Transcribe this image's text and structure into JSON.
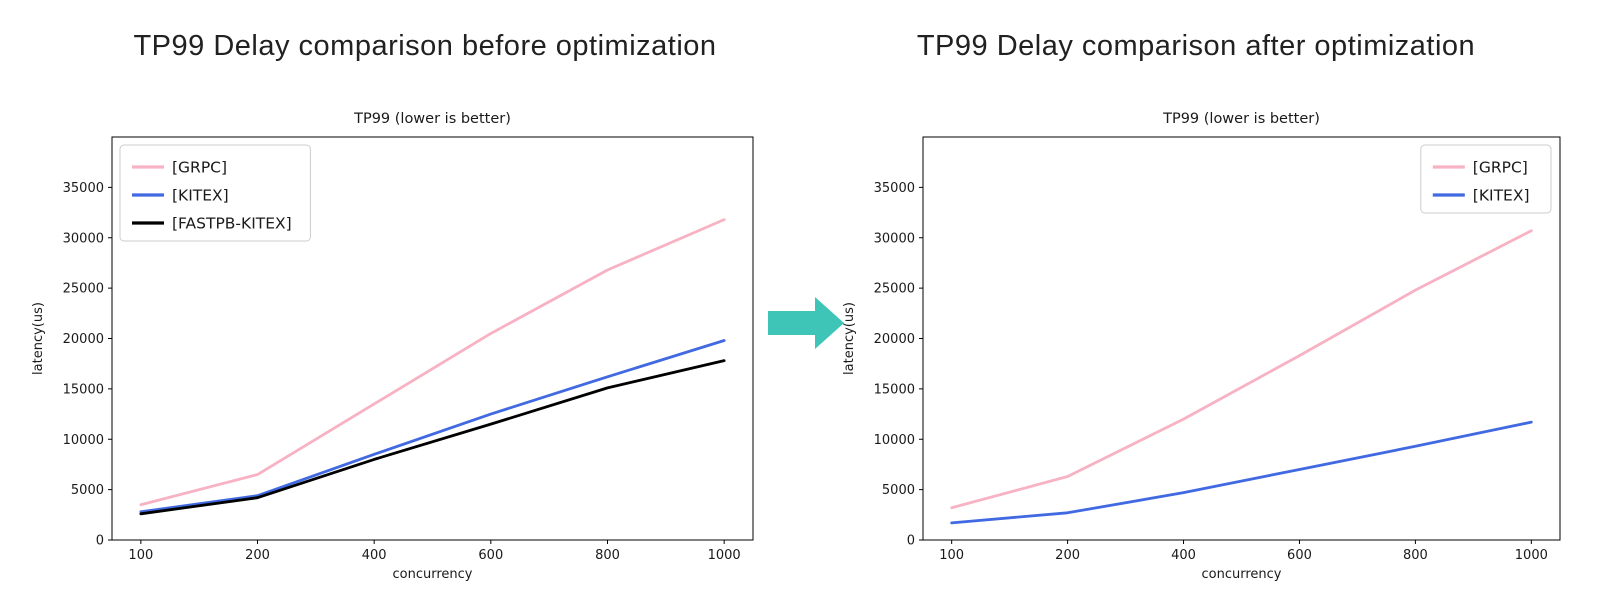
{
  "page": {
    "background": "#ffffff"
  },
  "before": {
    "heading": "TP99 Delay comparison before optimization"
  },
  "after": {
    "heading": "TP99 Delay comparison after optimization"
  },
  "arrow": {
    "kind": "right-block-arrow",
    "color": "#3fc5b7"
  },
  "chart_data": [
    {
      "id": "before",
      "type": "line",
      "title": "TP99 (lower is better)",
      "xlabel": "concurrency",
      "ylabel": "latency(us)",
      "categories": [
        100,
        200,
        400,
        600,
        800,
        1000
      ],
      "x_spacing": "categorical-equal",
      "series": [
        {
          "name": "[GRPC]",
          "color": "#f7b2c3",
          "values": [
            3500,
            6500,
            13500,
            20500,
            26800,
            31800
          ]
        },
        {
          "name": "[KITEX]",
          "color": "#4169e1",
          "values": [
            2800,
            4400,
            8500,
            12500,
            16200,
            19800
          ]
        },
        {
          "name": "[FASTPB-KITEX]",
          "color": "#000000",
          "values": [
            2600,
            4200,
            8000,
            11500,
            15100,
            17800
          ]
        }
      ],
      "ylim": [
        0,
        40000
      ],
      "yticks": [
        0,
        5000,
        10000,
        15000,
        20000,
        25000,
        30000,
        35000
      ],
      "grid": false,
      "legend_position": "top-left"
    },
    {
      "id": "after",
      "type": "line",
      "title": "TP99 (lower is better)",
      "xlabel": "concurrency",
      "ylabel": "latency(us)",
      "categories": [
        100,
        200,
        400,
        600,
        800,
        1000
      ],
      "x_spacing": "categorical-equal",
      "series": [
        {
          "name": "[GRPC]",
          "color": "#f7b2c3",
          "values": [
            3200,
            6300,
            12000,
            18300,
            24800,
            30700
          ]
        },
        {
          "name": "[KITEX]",
          "color": "#4169e1",
          "values": [
            1700,
            2700,
            4700,
            7000,
            9300,
            11700
          ]
        }
      ],
      "ylim": [
        0,
        40000
      ],
      "yticks": [
        0,
        5000,
        10000,
        15000,
        20000,
        25000,
        30000,
        35000
      ],
      "grid": false,
      "legend_position": "top-right"
    }
  ]
}
